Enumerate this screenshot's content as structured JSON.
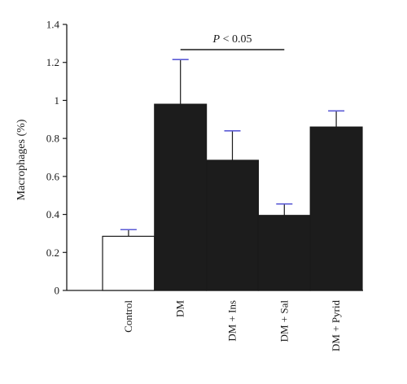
{
  "chart_data": {
    "type": "bar",
    "title": "",
    "xlabel": "",
    "ylabel": "Macrophages (%)",
    "ylim": [
      0,
      1.4
    ],
    "yticks": [
      "0",
      "0.2",
      "0.4",
      "0.6",
      "0.8",
      "1",
      "1.2",
      "1.4"
    ],
    "categories": [
      "Control",
      "DM",
      "DM + Ins",
      "DM + Sal",
      "DM + Pyrid"
    ],
    "values": [
      0.285,
      0.98,
      0.685,
      0.395,
      0.86
    ],
    "errors": [
      0.035,
      0.235,
      0.155,
      0.06,
      0.085
    ],
    "bar_colors": [
      "#ffffff",
      "#1c1c1c",
      "#1c1c1c",
      "#1c1c1c",
      "#1c1c1c"
    ],
    "error_color": "#5b5bd6",
    "annotation": {
      "p_symbol": "P",
      "text": " < 0.05",
      "from_category": "DM",
      "to_category": "DM + Sal"
    }
  }
}
